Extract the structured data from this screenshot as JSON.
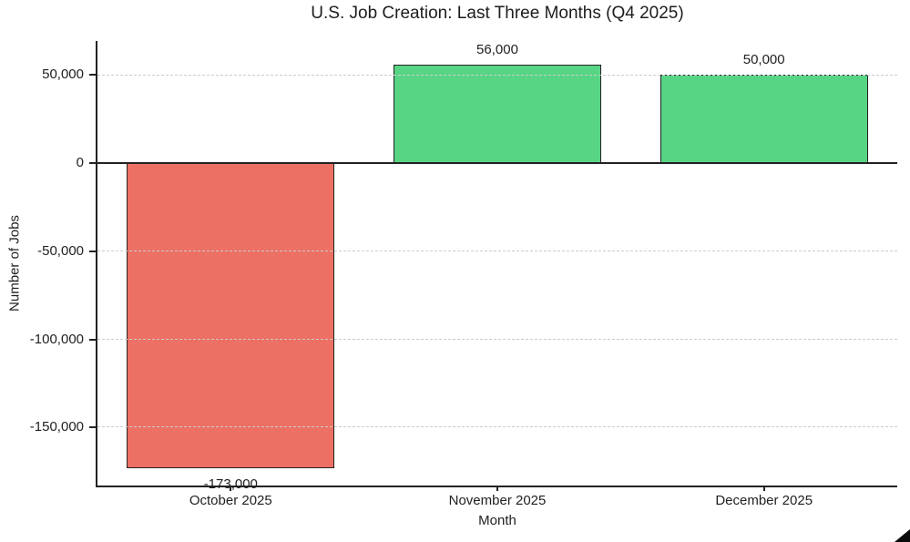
{
  "chart_data": {
    "type": "bar",
    "title": "U.S. Job Creation: Last Three Months (Q4 2025)",
    "xlabel": "Month",
    "ylabel": "Number of Jobs",
    "categories": [
      "October 2025",
      "November 2025",
      "December 2025"
    ],
    "values": [
      -173000,
      56000,
      50000
    ],
    "value_labels": [
      "-173,000",
      "56,000",
      "50,000"
    ],
    "bar_colors": [
      "#EC7063",
      "#57D584",
      "#57D584"
    ],
    "bar_edge_color": "#222222",
    "bar_width_fraction": 0.78,
    "ylim": [
      -183000,
      69300
    ],
    "yticks": [
      50000,
      0,
      -50000,
      -100000,
      -150000
    ],
    "ytick_labels": [
      "50,000",
      "0",
      "-50,000",
      "-100,000",
      "-150,000"
    ],
    "grid": true,
    "grid_color": "#cccccc",
    "grid_style": "dashed",
    "zero_line": true,
    "axis_color": "#222222",
    "text_color": "#212121",
    "legend": "none",
    "background": "#ffffff"
  },
  "decorations": {
    "bottom_right_marker": "black-corner-triangle"
  }
}
